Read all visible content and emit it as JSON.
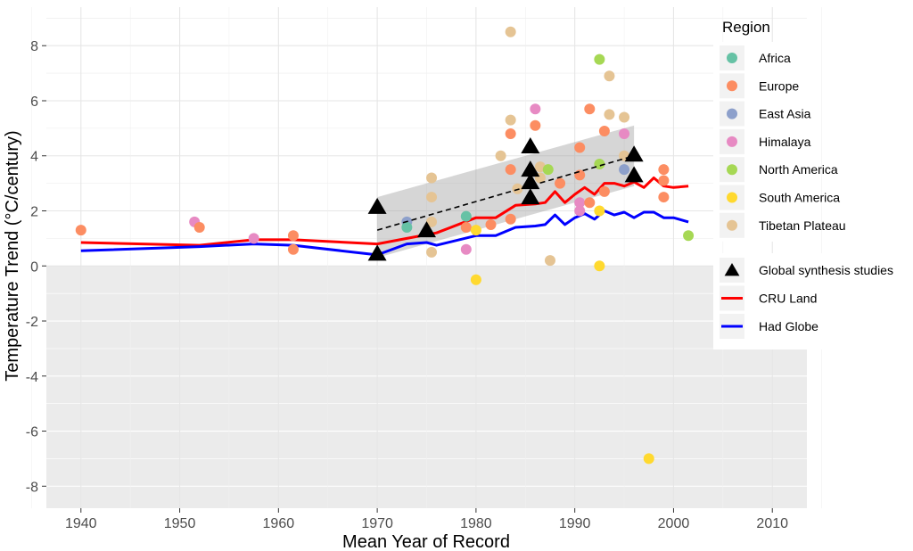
{
  "chart_data": {
    "type": "scatter",
    "xlabel": "Mean Year of Record",
    "ylabel": "Temperature Trend (°C/century)",
    "xlim": [
      1936.5,
      2013.5
    ],
    "ylim": [
      -8.8,
      9.4
    ],
    "xticks": [
      1940,
      1950,
      1960,
      1970,
      1980,
      1990,
      2000,
      2010
    ],
    "yticks": [
      -8,
      -6,
      -4,
      -2,
      0,
      2,
      4,
      6,
      8
    ],
    "negative_band_fill": "#ebebeb",
    "grid": true,
    "legend": {
      "title": "Region",
      "placement": "right",
      "regions": [
        {
          "name": "Africa",
          "color": "#66c2a5"
        },
        {
          "name": "Europe",
          "color": "#fc8d62"
        },
        {
          "name": "East Asia",
          "color": "#8da0cb"
        },
        {
          "name": "Himalaya",
          "color": "#e78ac3"
        },
        {
          "name": "North America",
          "color": "#a6d854"
        },
        {
          "name": "South America",
          "color": "#ffd92f"
        },
        {
          "name": "Tibetan Plateau",
          "color": "#e5c494"
        }
      ],
      "lines": [
        {
          "name": "Global synthesis studies",
          "kind": "triangle",
          "color": "#000000"
        },
        {
          "name": "CRU Land",
          "kind": "line",
          "color": "#ff0000"
        },
        {
          "name": "Had Globe",
          "kind": "line",
          "color": "#0000ff"
        }
      ]
    },
    "points": [
      {
        "x": 1940,
        "y": 1.3,
        "region": "Europe"
      },
      {
        "x": 1951.5,
        "y": 1.6,
        "region": "Himalaya"
      },
      {
        "x": 1952,
        "y": 1.4,
        "region": "Europe"
      },
      {
        "x": 1957.5,
        "y": 1.0,
        "region": "Himalaya"
      },
      {
        "x": 1961.5,
        "y": 1.1,
        "region": "Europe"
      },
      {
        "x": 1961.5,
        "y": 0.6,
        "region": "Europe"
      },
      {
        "x": 1973,
        "y": 1.6,
        "region": "East Asia"
      },
      {
        "x": 1973,
        "y": 1.4,
        "region": "Africa"
      },
      {
        "x": 1975.5,
        "y": 3.2,
        "region": "Tibetan Plateau"
      },
      {
        "x": 1975.5,
        "y": 2.5,
        "region": "Tibetan Plateau"
      },
      {
        "x": 1975.5,
        "y": 1.6,
        "region": "Tibetan Plateau"
      },
      {
        "x": 1975.5,
        "y": 0.5,
        "region": "Tibetan Plateau"
      },
      {
        "x": 1979,
        "y": 1.8,
        "region": "Africa"
      },
      {
        "x": 1979,
        "y": 1.4,
        "region": "Europe"
      },
      {
        "x": 1979,
        "y": 0.6,
        "region": "Himalaya"
      },
      {
        "x": 1980,
        "y": 1.3,
        "region": "South America"
      },
      {
        "x": 1980,
        "y": -0.5,
        "region": "South America"
      },
      {
        "x": 1981.5,
        "y": 1.5,
        "region": "Europe"
      },
      {
        "x": 1982.5,
        "y": 4.0,
        "region": "Tibetan Plateau"
      },
      {
        "x": 1983.5,
        "y": 8.5,
        "region": "Tibetan Plateau"
      },
      {
        "x": 1983.5,
        "y": 5.3,
        "region": "Tibetan Plateau"
      },
      {
        "x": 1983.5,
        "y": 4.8,
        "region": "Europe"
      },
      {
        "x": 1983.5,
        "y": 3.5,
        "region": "Europe"
      },
      {
        "x": 1983.5,
        "y": 1.7,
        "region": "Europe"
      },
      {
        "x": 1984.2,
        "y": 2.8,
        "region": "Tibetan Plateau"
      },
      {
        "x": 1986,
        "y": 5.7,
        "region": "Himalaya"
      },
      {
        "x": 1986,
        "y": 5.1,
        "region": "Europe"
      },
      {
        "x": 1986.5,
        "y": 3.6,
        "region": "Tibetan Plateau"
      },
      {
        "x": 1986.5,
        "y": 3.2,
        "region": "Tibetan Plateau"
      },
      {
        "x": 1987.3,
        "y": 3.5,
        "region": "North America"
      },
      {
        "x": 1987.5,
        "y": 0.2,
        "region": "Tibetan Plateau"
      },
      {
        "x": 1988.5,
        "y": 3.0,
        "region": "Europe"
      },
      {
        "x": 1990.5,
        "y": 4.3,
        "region": "Europe"
      },
      {
        "x": 1990.5,
        "y": 3.3,
        "region": "Europe"
      },
      {
        "x": 1990.5,
        "y": 2.3,
        "region": "Himalaya"
      },
      {
        "x": 1990.5,
        "y": 2.0,
        "region": "Himalaya"
      },
      {
        "x": 1991.5,
        "y": 5.7,
        "region": "Europe"
      },
      {
        "x": 1991.5,
        "y": 2.3,
        "region": "Europe"
      },
      {
        "x": 1992.5,
        "y": 7.5,
        "region": "North America"
      },
      {
        "x": 1992.5,
        "y": 3.7,
        "region": "North America"
      },
      {
        "x": 1992.5,
        "y": 2.0,
        "region": "South America"
      },
      {
        "x": 1992.5,
        "y": 0.0,
        "region": "South America"
      },
      {
        "x": 1993,
        "y": 4.9,
        "region": "Europe"
      },
      {
        "x": 1993,
        "y": 2.7,
        "region": "Europe"
      },
      {
        "x": 1993.5,
        "y": 6.9,
        "region": "Tibetan Plateau"
      },
      {
        "x": 1993.5,
        "y": 5.5,
        "region": "Tibetan Plateau"
      },
      {
        "x": 1995,
        "y": 5.4,
        "region": "Tibetan Plateau"
      },
      {
        "x": 1995,
        "y": 4.8,
        "region": "Himalaya"
      },
      {
        "x": 1995,
        "y": 4.0,
        "region": "Tibetan Plateau"
      },
      {
        "x": 1995,
        "y": 3.5,
        "region": "East Asia"
      },
      {
        "x": 1997.5,
        "y": -7.0,
        "region": "South America"
      },
      {
        "x": 1999,
        "y": 3.5,
        "region": "Europe"
      },
      {
        "x": 1999,
        "y": 3.1,
        "region": "Europe"
      },
      {
        "x": 1999,
        "y": 2.5,
        "region": "Europe"
      },
      {
        "x": 2001.5,
        "y": 1.1,
        "region": "North America"
      }
    ],
    "synthesis": [
      {
        "x": 1970,
        "y": 2.15
      },
      {
        "x": 1970,
        "y": 0.45
      },
      {
        "x": 1975,
        "y": 1.3
      },
      {
        "x": 1985.5,
        "y": 4.35
      },
      {
        "x": 1985.5,
        "y": 3.5
      },
      {
        "x": 1985.5,
        "y": 3.05
      },
      {
        "x": 1985.5,
        "y": 2.5
      },
      {
        "x": 1996,
        "y": 4.05
      },
      {
        "x": 1996,
        "y": 3.3
      }
    ],
    "trend": {
      "x": [
        1970,
        1996
      ],
      "y": [
        1.3,
        4.0
      ],
      "ci_upper": [
        2.5,
        5.1
      ],
      "ci_lower": [
        0.3,
        2.9
      ]
    },
    "series": [
      {
        "name": "CRU Land",
        "x": [
          1940,
          1952,
          1957.5,
          1961.5,
          1970,
          1973,
          1976,
          1980,
          1982,
          1984,
          1986,
          1987,
          1988,
          1989,
          1990,
          1991,
          1992,
          1993,
          1994,
          1995,
          1996,
          1997,
          1998,
          1999,
          2000,
          2001.5
        ],
        "y": [
          0.85,
          0.75,
          0.95,
          0.95,
          0.8,
          1.0,
          1.2,
          1.75,
          1.75,
          2.2,
          2.25,
          2.3,
          2.7,
          2.3,
          2.6,
          2.85,
          2.6,
          3.0,
          3.0,
          2.9,
          3.05,
          2.85,
          3.2,
          2.9,
          2.85,
          2.9
        ]
      },
      {
        "name": "Had Globe",
        "x": [
          1940,
          1952,
          1957.5,
          1961.5,
          1970,
          1973,
          1975,
          1976,
          1980,
          1982,
          1984,
          1986,
          1987,
          1988,
          1989,
          1990,
          1991,
          1992,
          1993,
          1994,
          1995,
          1996,
          1997,
          1998,
          1999,
          2000,
          2001.5
        ],
        "y": [
          0.55,
          0.7,
          0.8,
          0.75,
          0.4,
          0.8,
          0.85,
          0.75,
          1.1,
          1.1,
          1.4,
          1.45,
          1.5,
          1.85,
          1.5,
          1.75,
          1.9,
          1.7,
          2.0,
          1.85,
          1.95,
          1.75,
          1.95,
          1.95,
          1.75,
          1.75,
          1.6
        ]
      }
    ]
  }
}
